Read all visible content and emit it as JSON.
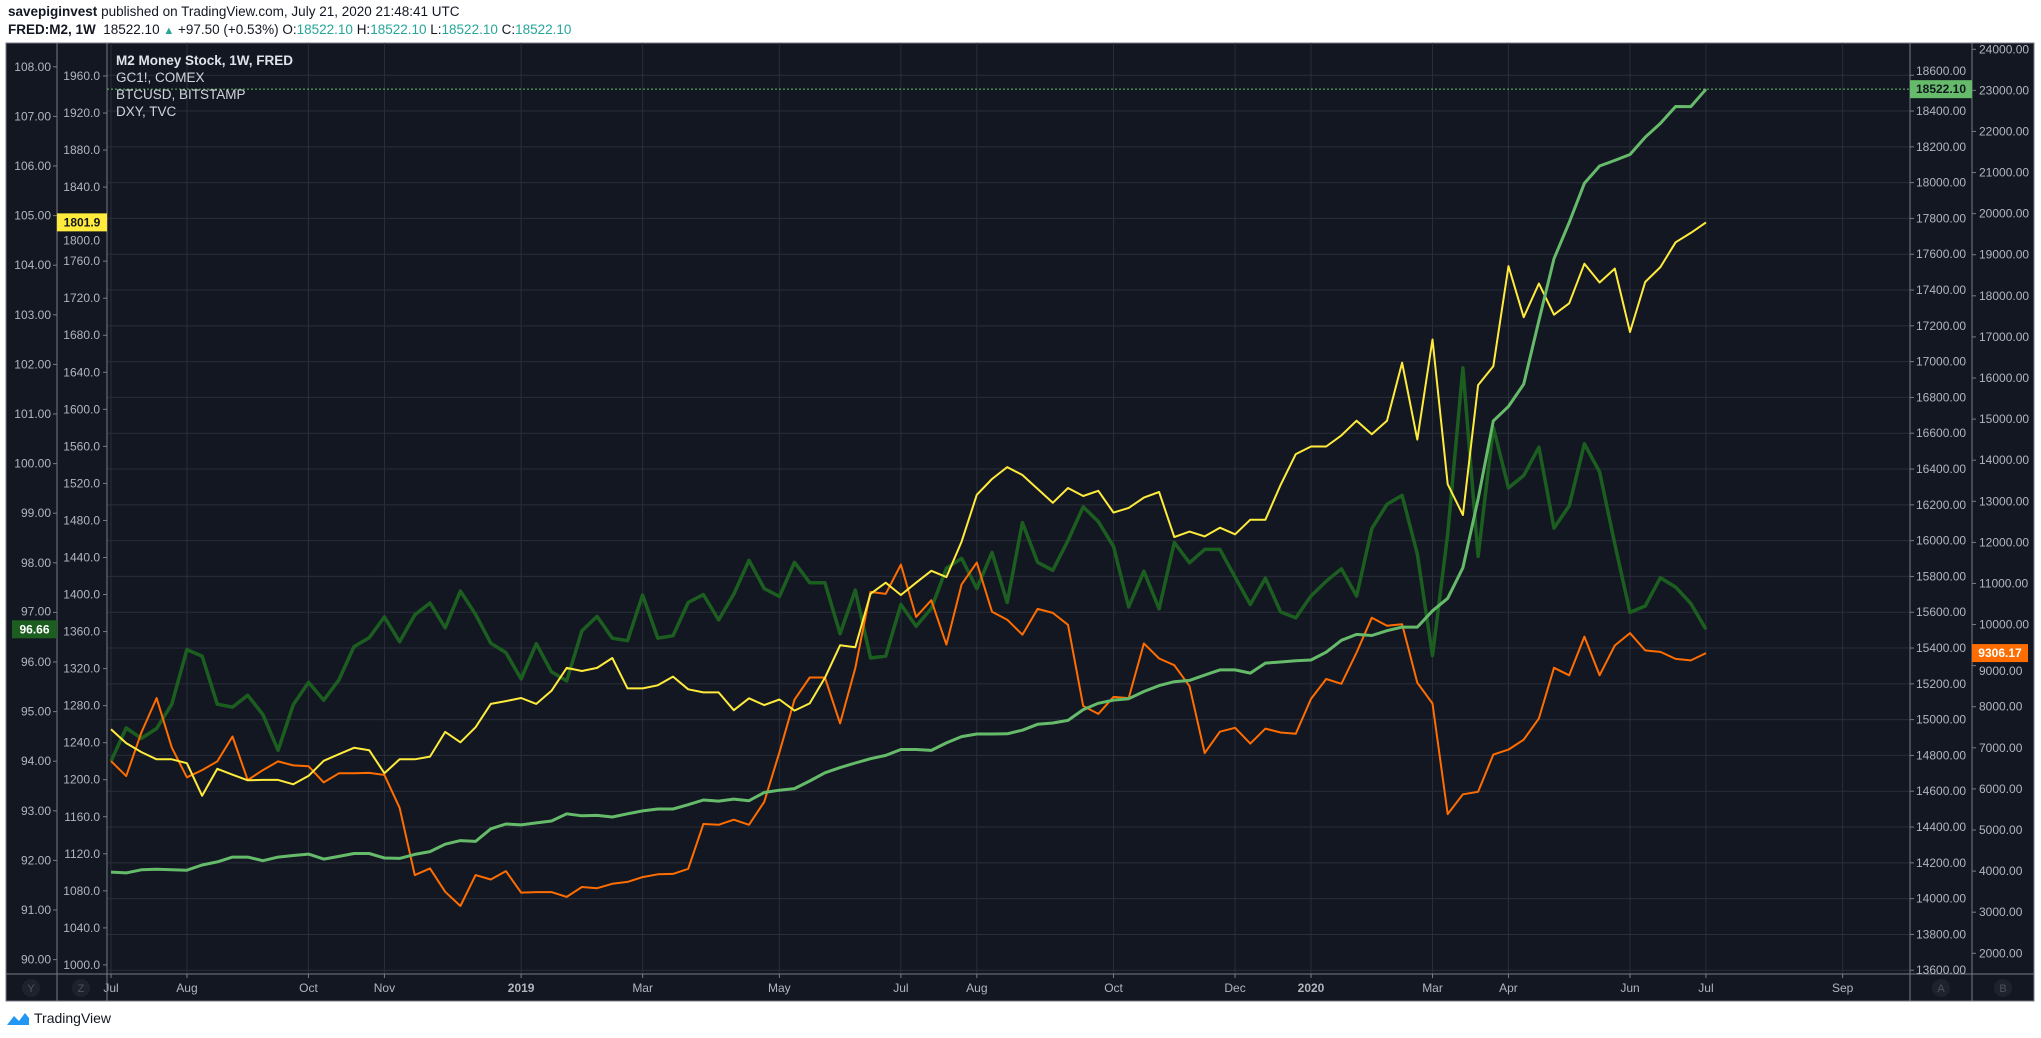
{
  "header": {
    "author": "savepiginvest",
    "published": "published on TradingView.com, July 21, 2020 21:48:41 UTC",
    "symbol": "FRED:M2, 1W",
    "last": "18522.10",
    "change_icon": "triangle-up-icon",
    "change": "+97.50 (+0.53%)",
    "o_label": "O:",
    "o": "18522.10",
    "h_label": "H:",
    "h": "18522.10",
    "l_label": "L:",
    "l": "18522.10",
    "c_label": "C:",
    "c": "18522.10"
  },
  "axis_buttons": {
    "y": "Y",
    "z": "Z",
    "a": "A",
    "b": "B"
  },
  "footer": {
    "logo": "TradingView"
  },
  "colors": {
    "background": "#131722",
    "grid": "#2a2e39",
    "axis_text": "#b2b5be",
    "up": "#26a69a"
  },
  "chart_data": {
    "type": "line",
    "grid": true,
    "legend_position": "top-left",
    "x_ticks": [
      {
        "label": "Jul",
        "date": "2018-07-02"
      },
      {
        "label": "Aug",
        "date": "2018-08-06"
      },
      {
        "label": "Oct",
        "date": "2018-10-01"
      },
      {
        "label": "Nov",
        "date": "2018-11-05"
      },
      {
        "label": "2019",
        "date": "2019-01-07"
      },
      {
        "label": "Mar",
        "date": "2019-03-04"
      },
      {
        "label": "May",
        "date": "2019-05-06"
      },
      {
        "label": "Jul",
        "date": "2019-07-01"
      },
      {
        "label": "Aug",
        "date": "2019-08-05"
      },
      {
        "label": "Oct",
        "date": "2019-10-07"
      },
      {
        "label": "Dec",
        "date": "2019-12-02"
      },
      {
        "label": "2020",
        "date": "2020-01-06"
      },
      {
        "label": "Mar",
        "date": "2020-03-02"
      },
      {
        "label": "Apr",
        "date": "2020-04-06"
      },
      {
        "label": "Jun",
        "date": "2020-06-01"
      },
      {
        "label": "Jul",
        "date": "2020-07-06"
      },
      {
        "label": "Sep",
        "date": "2020-09-07"
      }
    ],
    "dates": [
      "2018-07-02",
      "2018-07-09",
      "2018-07-16",
      "2018-07-23",
      "2018-07-30",
      "2018-08-06",
      "2018-08-13",
      "2018-08-20",
      "2018-08-27",
      "2018-09-03",
      "2018-09-10",
      "2018-09-17",
      "2018-09-24",
      "2018-10-01",
      "2018-10-08",
      "2018-10-15",
      "2018-10-22",
      "2018-10-29",
      "2018-11-05",
      "2018-11-12",
      "2018-11-19",
      "2018-11-26",
      "2018-12-03",
      "2018-12-10",
      "2018-12-17",
      "2018-12-24",
      "2018-12-31",
      "2019-01-07",
      "2019-01-14",
      "2019-01-21",
      "2019-01-28",
      "2019-02-04",
      "2019-02-11",
      "2019-02-18",
      "2019-02-25",
      "2019-03-04",
      "2019-03-11",
      "2019-03-18",
      "2019-03-25",
      "2019-04-01",
      "2019-04-08",
      "2019-04-15",
      "2019-04-22",
      "2019-04-29",
      "2019-05-06",
      "2019-05-13",
      "2019-05-20",
      "2019-05-27",
      "2019-06-03",
      "2019-06-10",
      "2019-06-17",
      "2019-06-24",
      "2019-07-01",
      "2019-07-08",
      "2019-07-15",
      "2019-07-22",
      "2019-07-29",
      "2019-08-05",
      "2019-08-12",
      "2019-08-19",
      "2019-08-26",
      "2019-09-02",
      "2019-09-09",
      "2019-09-16",
      "2019-09-23",
      "2019-09-30",
      "2019-10-07",
      "2019-10-14",
      "2019-10-21",
      "2019-10-28",
      "2019-11-04",
      "2019-11-11",
      "2019-11-18",
      "2019-11-25",
      "2019-12-02",
      "2019-12-09",
      "2019-12-16",
      "2019-12-23",
      "2019-12-30",
      "2020-01-06",
      "2020-01-13",
      "2020-01-20",
      "2020-01-27",
      "2020-02-03",
      "2020-02-10",
      "2020-02-17",
      "2020-02-24",
      "2020-03-02",
      "2020-03-09",
      "2020-03-16",
      "2020-03-23",
      "2020-03-30",
      "2020-04-06",
      "2020-04-13",
      "2020-04-20",
      "2020-04-27",
      "2020-05-04",
      "2020-05-11",
      "2020-05-18",
      "2020-05-25",
      "2020-06-01",
      "2020-06-08",
      "2020-06-15",
      "2020-06-22",
      "2020-06-29",
      "2020-07-06"
    ],
    "series": [
      {
        "name": "M2 Money Stock, 1W, FRED",
        "color": "#66bb6a",
        "scale": "A",
        "ylim": [
          13579,
          18780
        ],
        "ticks": [
          "18600.00",
          "18400.00",
          "18200.00",
          "18000.00",
          "17800.00",
          "17600.00",
          "17400.00",
          "17200.00",
          "17000.00",
          "16800.00",
          "16600.00",
          "16400.00",
          "16200.00",
          "16000.00",
          "15800.00",
          "15600.00",
          "15400.00",
          "15200.00",
          "15000.00",
          "14800.00",
          "14600.00",
          "14400.00",
          "14200.00",
          "14000.00",
          "13800.00",
          "13600.00"
        ],
        "last_label": "18522.10",
        "values": [
          14148,
          14144,
          14161,
          14164,
          14161,
          14159,
          14188,
          14205,
          14232,
          14232,
          14212,
          14232,
          14241,
          14249,
          14221,
          14236,
          14252,
          14252,
          14227,
          14225,
          14247,
          14263,
          14304,
          14324,
          14320,
          14390,
          14417,
          14412,
          14423,
          14434,
          14474,
          14463,
          14465,
          14456,
          14474,
          14490,
          14501,
          14501,
          14525,
          14551,
          14545,
          14556,
          14547,
          14593,
          14606,
          14615,
          14657,
          14703,
          14732,
          14758,
          14782,
          14800,
          14833,
          14833,
          14828,
          14870,
          14905,
          14920,
          14920,
          14921,
          14941,
          14974,
          14981,
          14996,
          15056,
          15091,
          15109,
          15117,
          15157,
          15190,
          15212,
          15219,
          15249,
          15278,
          15278,
          15260,
          15316,
          15322,
          15329,
          15333,
          15377,
          15443,
          15476,
          15470,
          15497,
          15517,
          15517,
          15608,
          15678,
          15849,
          16232,
          16669,
          16750,
          16874,
          17229,
          17575,
          17777,
          17996,
          18093,
          18124,
          18157,
          18254,
          18331,
          18425,
          18424.6,
          18522.1
        ]
      },
      {
        "name": "GC1!, COMEX",
        "color": "#ffeb3b",
        "scale": "Z",
        "ylim": [
          990.2,
          1995.6
        ],
        "ticks": [
          "1960.0",
          "1920.0",
          "1880.0",
          "1840.0",
          "1800.0",
          "1760.0",
          "1720.0",
          "1680.0",
          "1640.0",
          "1600.0",
          "1560.0",
          "1520.0",
          "1480.0",
          "1440.0",
          "1400.0",
          "1360.0",
          "1320.0",
          "1280.0",
          "1240.0",
          "1200.0",
          "1160.0",
          "1120.0",
          "1080.0",
          "1040.0",
          "1000.0"
        ],
        "last_label": "1801.9",
        "values": [
          1254.6,
          1239.6,
          1229.8,
          1222.1,
          1222.1,
          1217.8,
          1182.7,
          1211.8,
          1205.4,
          1199.4,
          1199.8,
          1199.8,
          1195.1,
          1204.1,
          1220.4,
          1227.6,
          1234.5,
          1231.9,
          1207.1,
          1222.1,
          1222.1,
          1225.0,
          1251.6,
          1240.4,
          1256.7,
          1281.9,
          1284.9,
          1288.3,
          1281.9,
          1296.0,
          1320.8,
          1317.4,
          1320.8,
          1331.5,
          1298.6,
          1298.6,
          1302.0,
          1311.4,
          1297.7,
          1294.3,
          1294.3,
          1275.1,
          1287.9,
          1280.6,
          1286.6,
          1274.6,
          1282.4,
          1310.1,
          1345.2,
          1343.1,
          1400.8,
          1412.8,
          1399.5,
          1412.8,
          1425.6,
          1418.8,
          1457.2,
          1507.7,
          1524.8,
          1537.6,
          1529.1,
          1514.1,
          1499.1,
          1515.0,
          1506.4,
          1512.0,
          1488.5,
          1493.6,
          1504.7,
          1510.7,
          1462.0,
          1468.0,
          1462.8,
          1472.2,
          1465.0,
          1480.8,
          1480.8,
          1518.4,
          1551.7,
          1559.9,
          1559.9,
          1571.8,
          1587.7,
          1573.1,
          1587.6,
          1650.3,
          1567.3,
          1675.4,
          1519.1,
          1485.9,
          1626.2,
          1646.5,
          1754.7,
          1699.5,
          1735.9,
          1702.2,
          1714.5,
          1757.3,
          1737.0,
          1752.0,
          1683.5,
          1737.5,
          1753.6,
          1780.4,
          1790.5,
          1801.9
        ]
      },
      {
        "name": "BTCUSD, BITSTAMP",
        "color": "#ff6d00",
        "scale": "B",
        "ylim": [
          1496,
          24153
        ],
        "ticks": [
          "24000.00",
          "23000.00",
          "22000.00",
          "21000.00",
          "20000.00",
          "19000.00",
          "18000.00",
          "17000.00",
          "16000.00",
          "15000.00",
          "14000.00",
          "13000.00",
          "12000.00",
          "11000.00",
          "10000.00",
          "9000.00",
          "8000.00",
          "7000.00",
          "6000.00",
          "5000.00",
          "4000.00",
          "3000.00",
          "2000.00"
        ],
        "last_label": "9306.17",
        "values": [
          6678,
          6312,
          7372,
          8211,
          7006,
          6283,
          6457,
          6669,
          7276,
          6216,
          6457,
          6669,
          6572,
          6553,
          6158,
          6380,
          6380,
          6389,
          6341,
          5541,
          3902,
          4066,
          3497,
          3150,
          3902,
          3796,
          3999,
          3478,
          3488,
          3488,
          3372,
          3613,
          3584,
          3690,
          3738,
          3854,
          3922,
          3931,
          4056,
          5146,
          5126,
          5252,
          5126,
          5685,
          6890,
          8172,
          8712,
          8712,
          7594,
          8943,
          10794,
          10746,
          11459,
          10187,
          10592,
          9512,
          10977,
          11507,
          10312,
          10119,
          9753,
          10380,
          10283,
          9994,
          8018,
          7825,
          8240,
          8211,
          9541,
          9175,
          9011,
          8500,
          6871,
          7392,
          7488,
          7103,
          7469,
          7372,
          7344,
          8192,
          8674,
          8558,
          9319,
          10167,
          9973,
          10009,
          8585,
          8078,
          5387,
          5870,
          5930,
          6835,
          6956,
          7198,
          7717,
          8947,
          8766,
          9708,
          8766,
          9491,
          9792,
          9370,
          9334,
          9165,
          9128,
          9306.17
        ]
      },
      {
        "name": "DXY, TVC",
        "color": "#1b5e20",
        "scale": "Y",
        "ylim": [
          89.71,
          108.48
        ],
        "ticks": [
          "108.00",
          "107.00",
          "106.00",
          "105.00",
          "104.00",
          "103.00",
          "102.00",
          "101.00",
          "100.00",
          "99.00",
          "98.00",
          "97.00",
          "96.00",
          "95.00",
          "94.00",
          "93.00",
          "92.00",
          "91.00",
          "90.00"
        ],
        "last_label": "96.66",
        "values": [
          94.0,
          94.67,
          94.46,
          94.66,
          95.15,
          96.25,
          96.12,
          95.15,
          95.09,
          95.33,
          94.94,
          94.22,
          95.14,
          95.59,
          95.23,
          95.64,
          96.31,
          96.49,
          96.91,
          96.41,
          96.95,
          97.19,
          96.69,
          97.43,
          96.96,
          96.38,
          96.19,
          95.66,
          96.37,
          95.8,
          95.62,
          96.63,
          96.92,
          96.48,
          96.43,
          97.35,
          96.48,
          96.53,
          97.2,
          97.36,
          96.85,
          97.37,
          98.05,
          97.48,
          97.32,
          98.01,
          97.6,
          97.6,
          96.57,
          97.45,
          96.08,
          96.12,
          97.16,
          96.72,
          97.08,
          97.89,
          98.09,
          97.48,
          98.21,
          97.2,
          98.81,
          98.01,
          97.85,
          98.45,
          99.13,
          98.83,
          98.33,
          97.11,
          97.83,
          97.07,
          98.41,
          98.0,
          98.27,
          98.27,
          97.71,
          97.16,
          97.69,
          97.01,
          96.89,
          97.33,
          97.63,
          97.88,
          97.33,
          98.69,
          99.18,
          99.36,
          98.18,
          96.13,
          98.58,
          101.93,
          98.13,
          100.73,
          99.51,
          99.76,
          100.33,
          98.7,
          99.15,
          100.4,
          99.83,
          98.38,
          97.0,
          97.13,
          97.7,
          97.51,
          97.18,
          96.66
        ]
      }
    ]
  }
}
